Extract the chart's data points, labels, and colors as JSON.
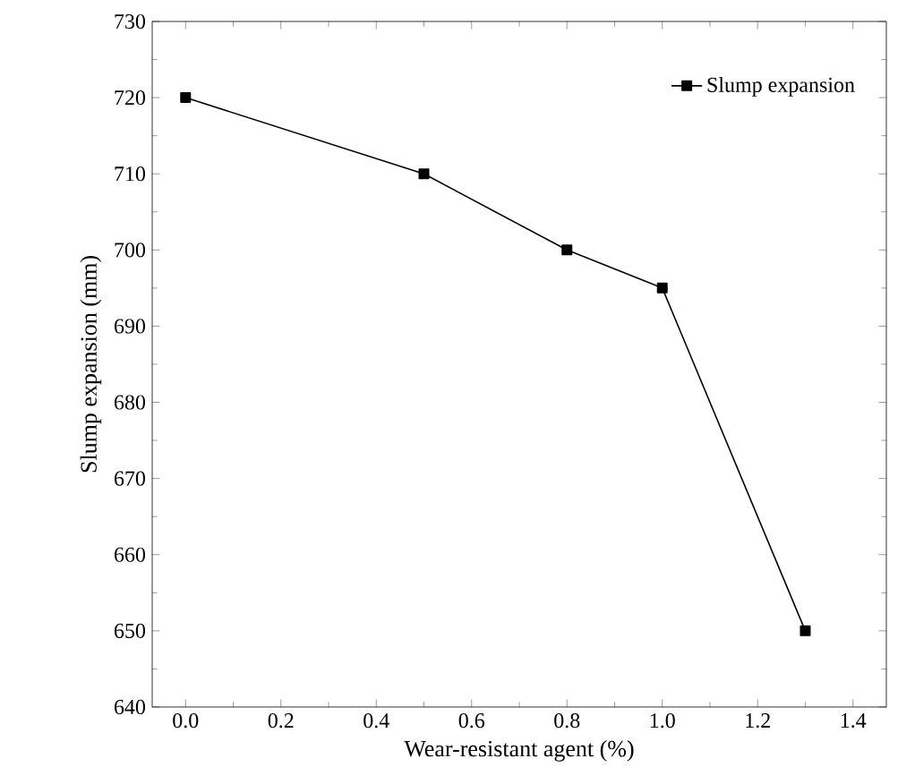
{
  "chart_data": {
    "type": "line",
    "xlabel": "Wear-resistant agent (%)",
    "ylabel": "Slump expansion (mm)",
    "x": [
      0.0,
      0.5,
      0.8,
      1.0,
      1.3
    ],
    "series": [
      {
        "name": "Slump expansion",
        "color": "#000000",
        "values": [
          720,
          710,
          700,
          695,
          650
        ]
      }
    ],
    "xlim": [
      -0.07,
      1.47
    ],
    "ylim": [
      640,
      730
    ],
    "xticks": [
      {
        "value": 0,
        "label": "0.0"
      },
      {
        "value": 0.2,
        "label": "0.2"
      },
      {
        "value": 0.4,
        "label": "0.4"
      },
      {
        "value": 0.6,
        "label": "0.6"
      },
      {
        "value": 0.8,
        "label": "0.8"
      },
      {
        "value": 1.0,
        "label": "1.0"
      },
      {
        "value": 1.2,
        "label": "1.2"
      },
      {
        "value": 1.4,
        "label": "1.4"
      }
    ],
    "yticks": [
      640,
      650,
      660,
      670,
      680,
      690,
      700,
      710,
      720,
      730
    ],
    "legend": "top right",
    "marker": "square",
    "line_style": "solid",
    "grid": false
  }
}
